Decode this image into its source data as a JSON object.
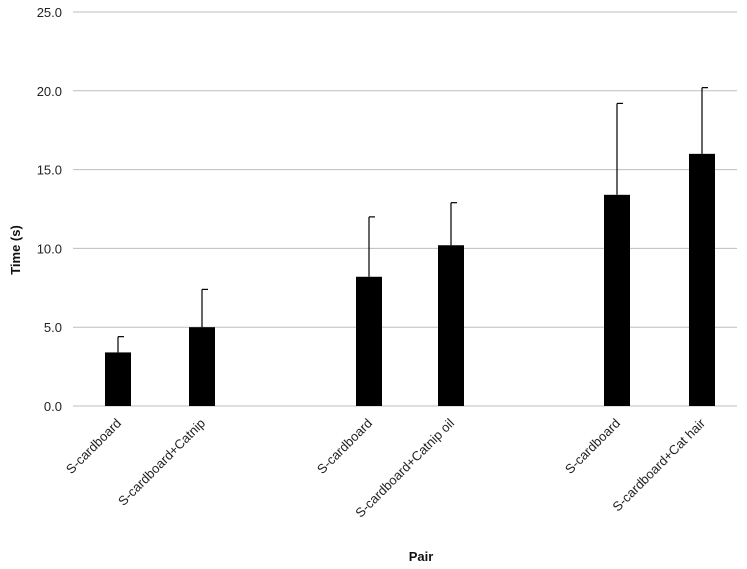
{
  "chart_data": {
    "type": "bar",
    "categories": [
      "S-cardboard",
      "S-cardboard+Catnip",
      "S-cardboard",
      "S-cardboard+Catnip oil",
      "S-cardboard",
      "S-cardboard+Cat hair"
    ],
    "values": [
      3.4,
      5.0,
      8.2,
      10.2,
      13.4,
      16.0
    ],
    "error_upper": [
      1.0,
      2.4,
      3.8,
      2.7,
      5.8,
      4.2
    ],
    "groups": [
      [
        0,
        1
      ],
      [
        2,
        3
      ],
      [
        4,
        5
      ]
    ],
    "xlabel": "Pair",
    "ylabel": "Time (s)",
    "ylim": [
      0,
      25
    ],
    "yticks": [
      "0.0",
      "5.0",
      "10.0",
      "15.0",
      "20.0",
      "25.0"
    ],
    "grid": true,
    "colors": {
      "bar": "#000000",
      "grid": "#bdbdbd"
    }
  }
}
